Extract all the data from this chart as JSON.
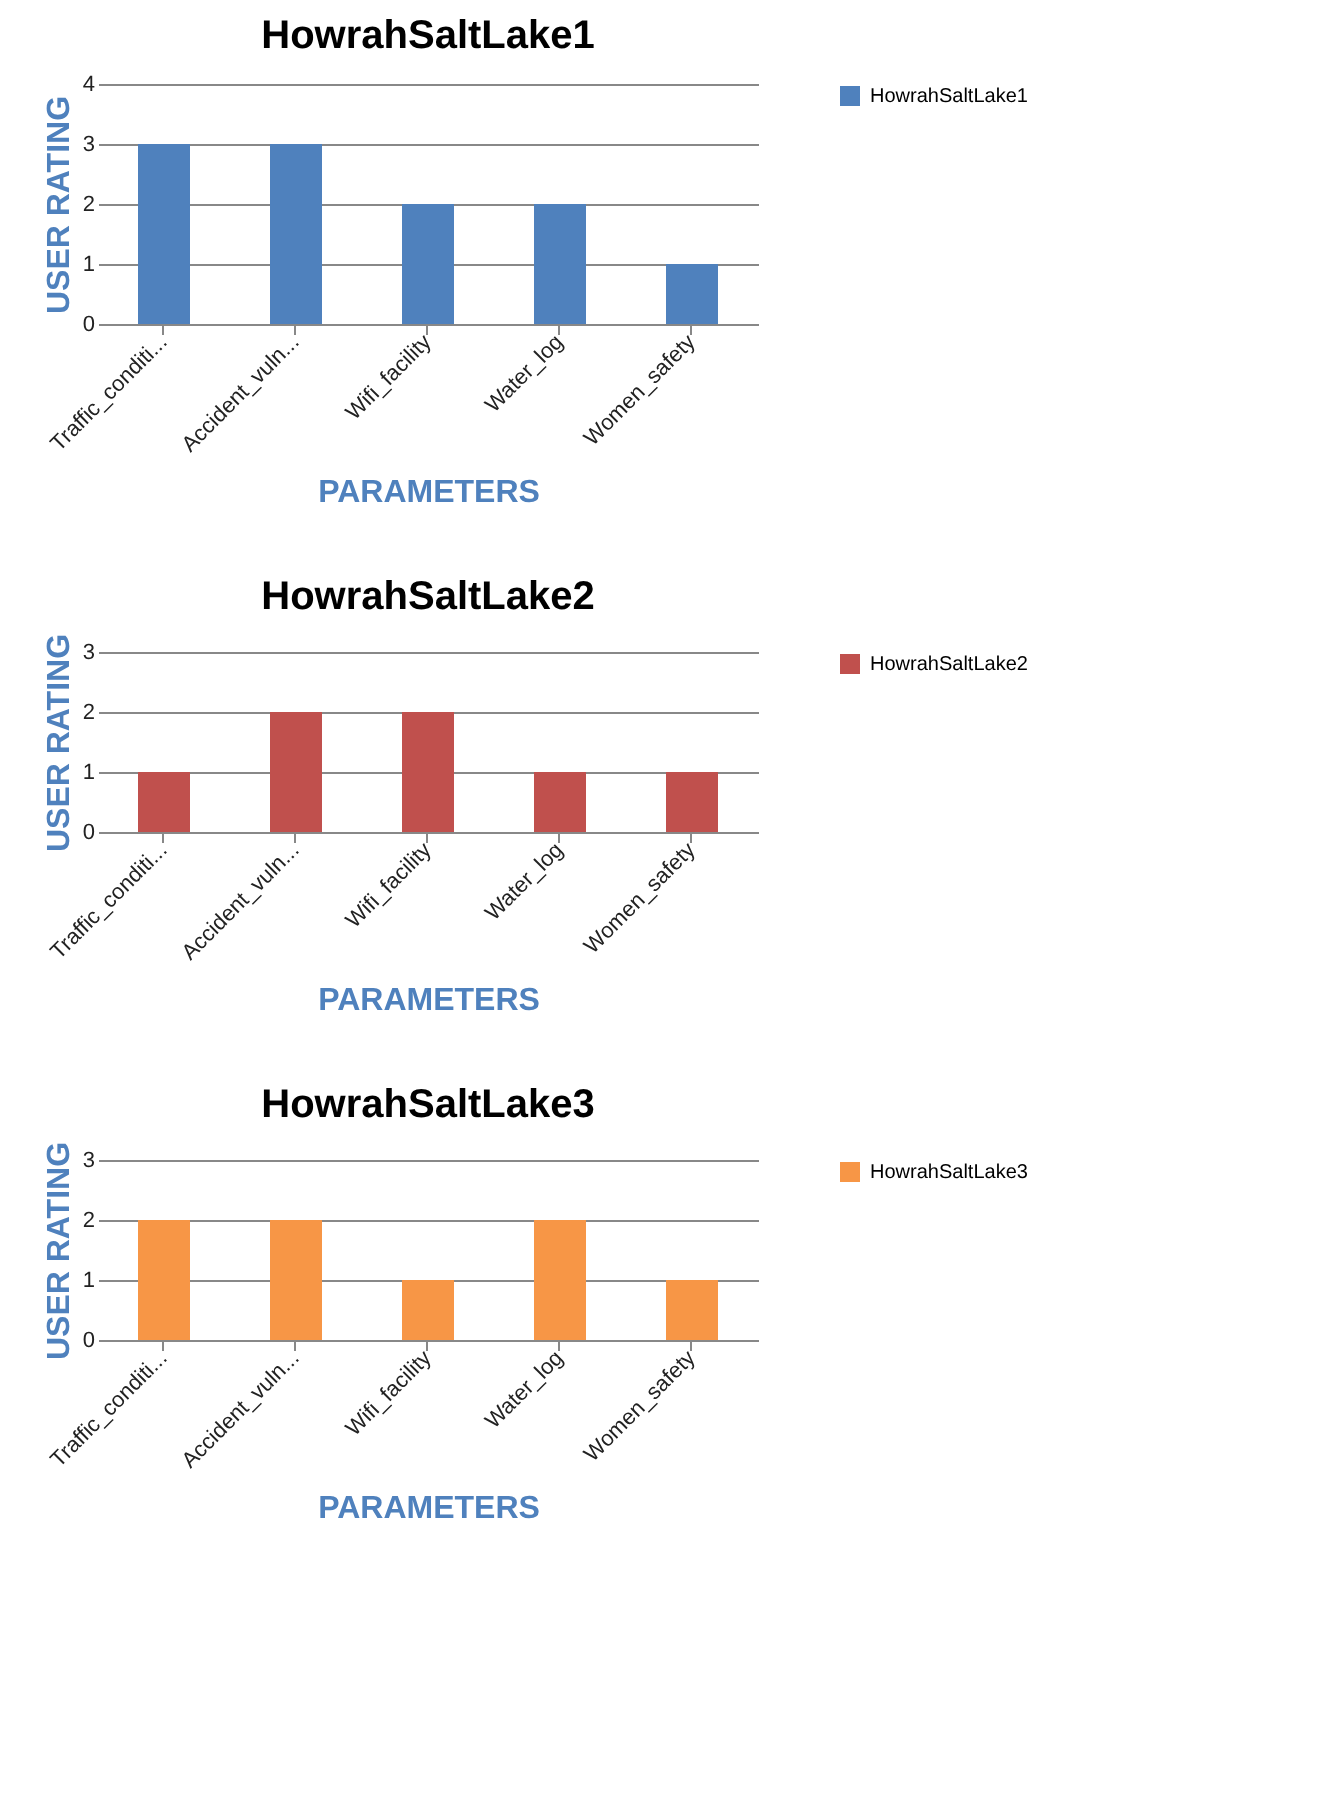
{
  "chart_data": [
    {
      "type": "bar",
      "title": "HowrahSaltLake1",
      "xlabel": "PARAMETERS",
      "ylabel": "USER RATING",
      "categories": [
        "Traffic_conditi...",
        "Accident_vuln...",
        "Wifi_facility",
        "Water_log",
        "Women_safety"
      ],
      "series": [
        {
          "name": "HowrahSaltLake1",
          "color": "#4f81bd",
          "values": [
            3,
            3,
            2,
            2,
            1
          ]
        }
      ],
      "ylim": [
        0,
        4
      ],
      "yticks": [
        0,
        1,
        2,
        3,
        4
      ],
      "grid": "y",
      "legend": "right"
    },
    {
      "type": "bar",
      "title": "HowrahSaltLake2",
      "xlabel": "PARAMETERS",
      "ylabel": "USER RATING",
      "categories": [
        "Traffic_conditi...",
        "Accident_vuln...",
        "Wifi_facility",
        "Water_log",
        "Women_safety"
      ],
      "series": [
        {
          "name": "HowrahSaltLake2",
          "color": "#c0504d",
          "values": [
            1,
            2,
            2,
            1,
            1
          ]
        }
      ],
      "ylim": [
        0,
        3
      ],
      "yticks": [
        0,
        1,
        2,
        3
      ],
      "grid": "y",
      "legend": "right"
    },
    {
      "type": "bar",
      "title": "HowrahSaltLake3",
      "xlabel": "PARAMETERS",
      "ylabel": "USER RATING",
      "categories": [
        "Traffic_conditi...",
        "Accident_vuln...",
        "Wifi_facility",
        "Water_log",
        "Women_safety"
      ],
      "series": [
        {
          "name": "HowrahSaltLake3",
          "color": "#f79646",
          "values": [
            2,
            2,
            1,
            2,
            1
          ]
        }
      ],
      "ylim": [
        0,
        3
      ],
      "yticks": [
        0,
        1,
        2,
        3
      ],
      "grid": "y",
      "legend": "right"
    }
  ]
}
